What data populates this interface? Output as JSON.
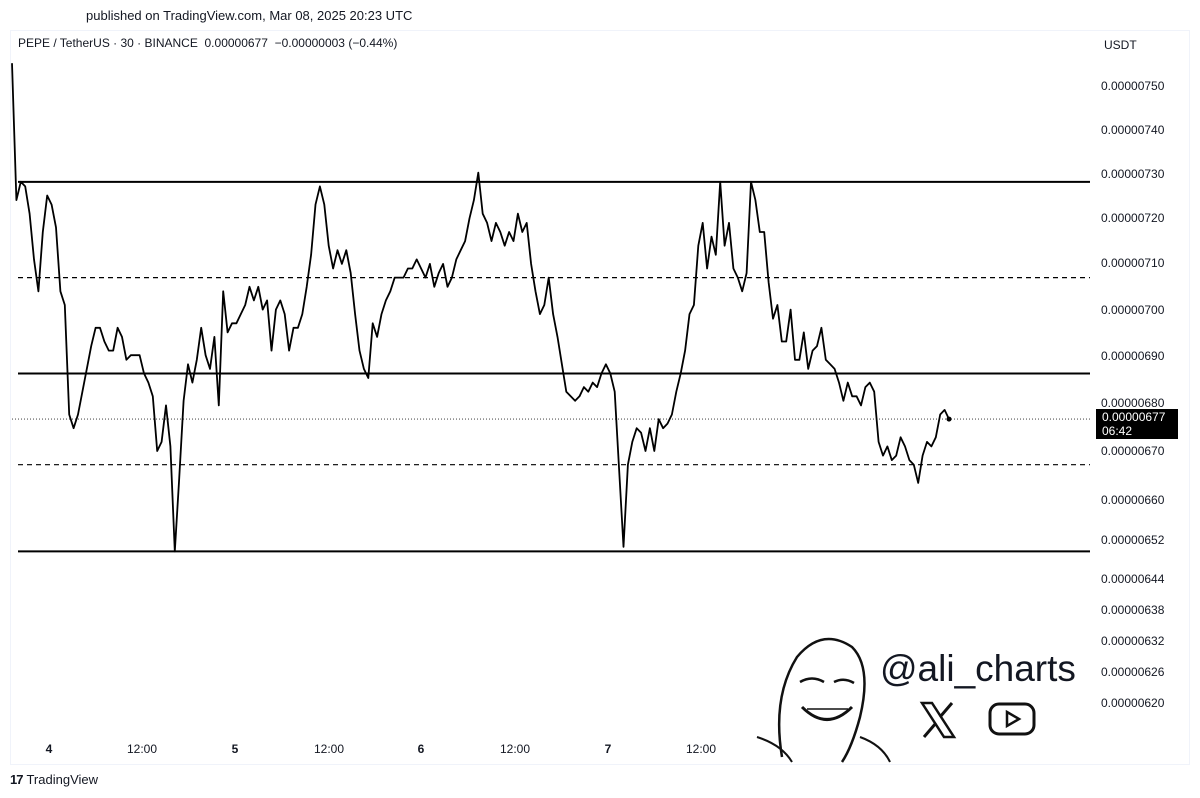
{
  "published": "published on TradingView.com, Mar 08, 2025 20:23 UTC",
  "symbol_line": "PEPE / TetherUS · 30 · BINANCE  0.00000677  −0.00000003 (−0.44%)",
  "currency": "USDT",
  "price_tag": {
    "price": "0.00000677",
    "countdown": "06:42"
  },
  "watermark": {
    "handle": "@ali_charts",
    "icons": [
      "x-logo-icon",
      "youtube-icon",
      "cartoon-face-logo"
    ]
  },
  "branding": {
    "label": "TradingView",
    "icon": "tradingview-logo-icon"
  },
  "colors": {
    "line": "#000000",
    "background": "#ffffff",
    "price_tag_bg": "#000000"
  },
  "chart_data": {
    "type": "line",
    "title": "",
    "xlabel": "",
    "ylabel": "",
    "x_ticks": [
      {
        "label": "4",
        "bold": true
      },
      {
        "label": "12:00",
        "bold": false
      },
      {
        "label": "5",
        "bold": true
      },
      {
        "label": "12:00",
        "bold": false
      },
      {
        "label": "6",
        "bold": true
      },
      {
        "label": "12:00",
        "bold": false
      },
      {
        "label": "7",
        "bold": true
      },
      {
        "label": "12:00",
        "bold": false
      }
    ],
    "y_ticks": [
      "0.00000750",
      "0.00000740",
      "0.00000730",
      "0.00000720",
      "0.00000710",
      "0.00000700",
      "0.00000690",
      "0.00000680",
      "0.00000670",
      "0.00000660",
      "0.00000652",
      "0.00000644",
      "0.00000638",
      "0.00000632",
      "0.00000626",
      "0.00000620"
    ],
    "levels": [
      {
        "price": 7.29e-06,
        "style": "solid"
      },
      {
        "price": 7.08e-06,
        "style": "dashed"
      },
      {
        "price": 6.87e-06,
        "style": "solid"
      },
      {
        "price": 6.77e-06,
        "style": "dotted"
      },
      {
        "price": 6.67e-06,
        "style": "dashed"
      },
      {
        "price": 6.48e-06,
        "style": "solid"
      }
    ],
    "series": [
      {
        "values": [
          7.55e-06,
          7.25e-06,
          7.29e-06,
          7.28e-06,
          7.22e-06,
          7.12e-06,
          7.05e-06,
          7.18e-06,
          7.26e-06,
          7.24e-06,
          7.19e-06,
          7.05e-06,
          7.02e-06,
          6.78e-06,
          6.75e-06,
          6.78e-06,
          6.83e-06,
          6.88e-06,
          6.93e-06,
          6.97e-06,
          6.97e-06,
          6.94e-06,
          6.92e-06,
          6.92e-06,
          6.97e-06,
          6.95e-06,
          6.9e-06,
          6.91e-06,
          6.91e-06,
          6.91e-06,
          6.87e-06,
          6.85e-06,
          6.82e-06,
          6.7e-06,
          6.72e-06,
          6.8e-06,
          6.71e-06,
          6.48e-06,
          6.64e-06,
          6.81e-06,
          6.89e-06,
          6.85e-06,
          6.9e-06,
          6.97e-06,
          6.91e-06,
          6.88e-06,
          6.95e-06,
          6.8e-06,
          7.05e-06,
          6.96e-06,
          6.98e-06,
          6.98e-06,
          7e-06,
          7.02e-06,
          7.06e-06,
          7.03e-06,
          7.06e-06,
          7.01e-06,
          7.03e-06,
          6.92e-06,
          7.01e-06,
          7.03e-06,
          7e-06,
          6.92e-06,
          6.97e-06,
          6.97e-06,
          7e-06,
          7.06e-06,
          7.13e-06,
          7.24e-06,
          7.28e-06,
          7.24e-06,
          7.15e-06,
          7.1e-06,
          7.14e-06,
          7.11e-06,
          7.14e-06,
          7.09e-06,
          7e-06,
          6.92e-06,
          6.88e-06,
          6.86e-06,
          6.98e-06,
          6.95e-06,
          7e-06,
          7.03e-06,
          7.05e-06,
          7.08e-06,
          7.08e-06,
          7.08e-06,
          7.1e-06,
          7.1e-06,
          7.12e-06,
          7.1e-06,
          7.08e-06,
          7.11e-06,
          7.06e-06,
          7.09e-06,
          7.11e-06,
          7.06e-06,
          7.08e-06,
          7.12e-06,
          7.14e-06,
          7.16e-06,
          7.21e-06,
          7.25e-06,
          7.31e-06,
          7.22e-06,
          7.2e-06,
          7.16e-06,
          7.2e-06,
          7.18e-06,
          7.15e-06,
          7.18e-06,
          7.16e-06,
          7.22e-06,
          7.18e-06,
          7.2e-06,
          7.11e-06,
          7.05e-06,
          7e-06,
          7.02e-06,
          7.08e-06,
          7e-06,
          6.95e-06,
          6.89e-06,
          6.83e-06,
          6.82e-06,
          6.81e-06,
          6.82e-06,
          6.84e-06,
          6.83e-06,
          6.85e-06,
          6.84e-06,
          6.87e-06,
          6.89e-06,
          6.87e-06,
          6.83e-06,
          6.66e-06,
          6.49e-06,
          6.67e-06,
          6.72e-06,
          6.75e-06,
          6.74e-06,
          6.7e-06,
          6.75e-06,
          6.7e-06,
          6.77e-06,
          6.75e-06,
          6.76e-06,
          6.78e-06,
          6.83e-06,
          6.87e-06,
          6.92e-06,
          7e-06,
          7.02e-06,
          7.15e-06,
          7.2e-06,
          7.1e-06,
          7.17e-06,
          7.13e-06,
          7.29e-06,
          7.15e-06,
          7.2e-06,
          7.1e-06,
          7.08e-06,
          7.05e-06,
          7.09e-06,
          7.29e-06,
          7.25e-06,
          7.18e-06,
          7.18e-06,
          7.07e-06,
          6.99e-06,
          7.02e-06,
          6.94e-06,
          6.94e-06,
          7.01e-06,
          6.9e-06,
          6.9e-06,
          6.96e-06,
          6.88e-06,
          6.92e-06,
          6.93e-06,
          6.97e-06,
          6.9e-06,
          6.89e-06,
          6.88e-06,
          6.85e-06,
          6.81e-06,
          6.85e-06,
          6.82e-06,
          6.82e-06,
          6.8e-06,
          6.84e-06,
          6.85e-06,
          6.83e-06,
          6.72e-06,
          6.69e-06,
          6.71e-06,
          6.68e-06,
          6.69e-06,
          6.73e-06,
          6.71e-06,
          6.68e-06,
          6.67e-06,
          6.63e-06,
          6.69e-06,
          6.72e-06,
          6.71e-06,
          6.73e-06,
          6.78e-06,
          6.79e-06,
          6.77e-06
        ],
        "x_index_range": "4 Mar 00:00 – 8 Mar ~20:00 (30m candles, approximate)"
      }
    ]
  }
}
